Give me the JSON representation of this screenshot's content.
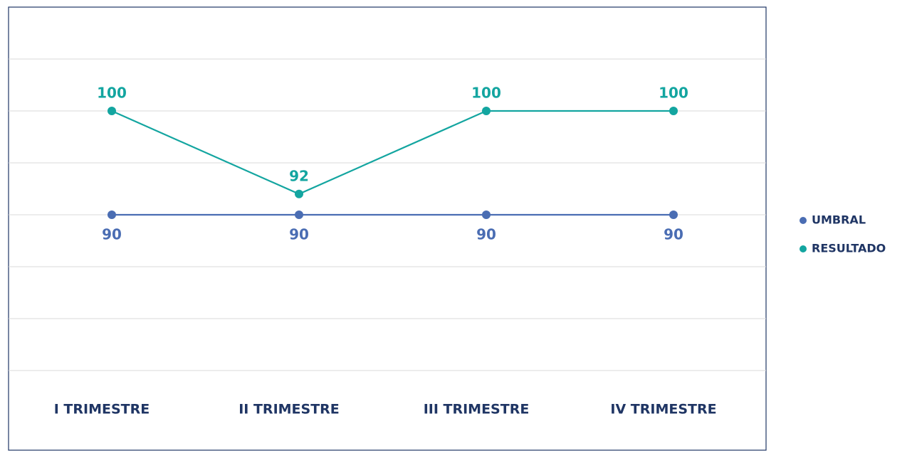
{
  "chart_data": {
    "type": "line",
    "categories": [
      "I TRIMESTRE",
      "II TRIMESTRE",
      "III TRIMESTRE",
      "IV TRIMESTRE"
    ],
    "series": [
      {
        "name": "UMBRAL",
        "color": "#4a6db3",
        "values": [
          90,
          90,
          90,
          90
        ]
      },
      {
        "name": "RESULTADO",
        "color": "#13a5a0",
        "values": [
          100,
          92,
          100,
          100
        ]
      }
    ],
    "ylim": [
      75,
      110
    ],
    "yticks": [
      75,
      80,
      85,
      90,
      95,
      100,
      105
    ],
    "grid": true,
    "legend": "right"
  }
}
